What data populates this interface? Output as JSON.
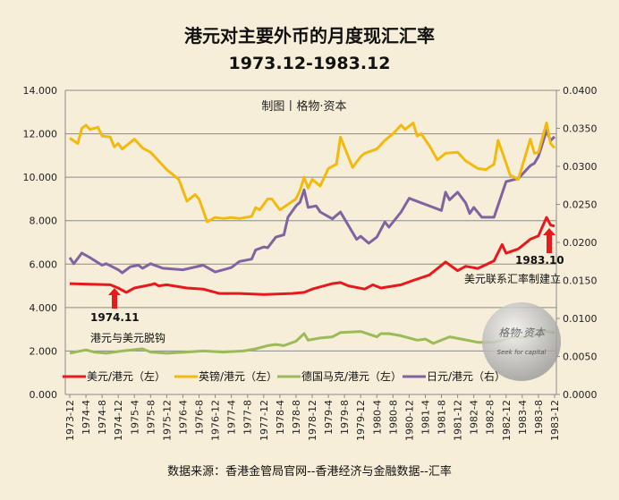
{
  "chart_data": {
    "type": "line",
    "title": "港元对主要外币的月度现汇汇率",
    "subtitle": "1973.12-1983.12",
    "credit": "制图丨格物·资本",
    "source": "数据来源：香港金管局官网--香港经济与金融数据--汇率",
    "x_tick_labels": [
      "1973-12",
      "1974-4",
      "1974-8",
      "1974-12",
      "1975-4",
      "1975-8",
      "1975-12",
      "1976-4",
      "1976-8",
      "1976-12",
      "1977-4",
      "1977-8",
      "1977-12",
      "1978-4",
      "1978-8",
      "1978-12",
      "1979-4",
      "1979-8",
      "1979-12",
      "1980-4",
      "1980-8",
      "1980-12",
      "1981-4",
      "1981-8",
      "1981-12",
      "1982-4",
      "1982-8",
      "1982-12",
      "1983-4",
      "1983-8",
      "1983-12"
    ],
    "y_left": {
      "range": [
        0,
        14
      ],
      "ticks": [
        "0.000",
        "2.000",
        "4.000",
        "6.000",
        "8.000",
        "10.000",
        "12.000",
        "14.000"
      ]
    },
    "y_right": {
      "range": [
        0,
        0.04
      ],
      "ticks": [
        "0.0000",
        "0.0050",
        "0.0100",
        "0.0150",
        "0.0200",
        "0.0250",
        "0.0300",
        "0.0350",
        "0.0400"
      ]
    },
    "grid": true,
    "legend_position": "bottom",
    "series": [
      {
        "name": "美元/港元（左）",
        "axis": "left",
        "color": "#e8191c",
        "points": [
          [
            "1973-12",
            5.1
          ],
          [
            "1974-10",
            5.05
          ],
          [
            "1974-12",
            4.9
          ],
          [
            "1975-2",
            4.7
          ],
          [
            "1975-4",
            4.9
          ],
          [
            "1975-8",
            5.05
          ],
          [
            "1975-9",
            5.1
          ],
          [
            "1975-10",
            5.0
          ],
          [
            "1975-12",
            5.05
          ],
          [
            "1976-5",
            4.9
          ],
          [
            "1976-9",
            4.85
          ],
          [
            "1977-1",
            4.65
          ],
          [
            "1977-6",
            4.65
          ],
          [
            "1977-12",
            4.6
          ],
          [
            "1978-7",
            4.65
          ],
          [
            "1978-10",
            4.7
          ],
          [
            "1978-12",
            4.85
          ],
          [
            "1979-5",
            5.1
          ],
          [
            "1979-7",
            5.15
          ],
          [
            "1979-9",
            5.0
          ],
          [
            "1980-1",
            4.85
          ],
          [
            "1980-3",
            5.05
          ],
          [
            "1980-5",
            4.9
          ],
          [
            "1980-10",
            5.05
          ],
          [
            "1981-1",
            5.25
          ],
          [
            "1981-5",
            5.5
          ],
          [
            "1981-9",
            6.1
          ],
          [
            "1981-12",
            5.7
          ],
          [
            "1982-2",
            5.9
          ],
          [
            "1982-5",
            5.8
          ],
          [
            "1982-9",
            6.15
          ],
          [
            "1982-11",
            6.9
          ],
          [
            "1982-12",
            6.5
          ],
          [
            "1983-3",
            6.7
          ],
          [
            "1983-6",
            7.15
          ],
          [
            "1983-8",
            7.3
          ],
          [
            "1983-10",
            8.15
          ],
          [
            "1983-11",
            7.8
          ],
          [
            "1983-12",
            7.75
          ]
        ]
      },
      {
        "name": "英镑/港元（左）",
        "axis": "left",
        "color": "#f2b90f",
        "points": [
          [
            "1973-12",
            11.8
          ],
          [
            "1974-2",
            11.55
          ],
          [
            "1974-3",
            12.25
          ],
          [
            "1974-4",
            12.4
          ],
          [
            "1974-5",
            12.2
          ],
          [
            "1974-7",
            12.3
          ],
          [
            "1974-8",
            11.9
          ],
          [
            "1974-10",
            11.85
          ],
          [
            "1974-11",
            11.4
          ],
          [
            "1974-12",
            11.55
          ],
          [
            "1975-1",
            11.3
          ],
          [
            "1975-4",
            11.75
          ],
          [
            "1975-6",
            11.35
          ],
          [
            "1975-8",
            11.15
          ],
          [
            "1975-12",
            10.35
          ],
          [
            "1976-1",
            10.2
          ],
          [
            "1976-3",
            9.9
          ],
          [
            "1976-5",
            8.9
          ],
          [
            "1976-7",
            9.2
          ],
          [
            "1976-8",
            9.0
          ],
          [
            "1976-10",
            7.95
          ],
          [
            "1976-12",
            8.15
          ],
          [
            "1977-2",
            8.1
          ],
          [
            "1977-4",
            8.15
          ],
          [
            "1977-6",
            8.1
          ],
          [
            "1977-9",
            8.2
          ],
          [
            "1977-10",
            8.6
          ],
          [
            "1977-11",
            8.5
          ],
          [
            "1978-1",
            9.0
          ],
          [
            "1978-2",
            9.0
          ],
          [
            "1978-4",
            8.5
          ],
          [
            "1978-8",
            9.0
          ],
          [
            "1978-9",
            9.4
          ],
          [
            "1978-10",
            10.0
          ],
          [
            "1978-11",
            9.5
          ],
          [
            "1978-12",
            9.9
          ],
          [
            "1979-2",
            9.6
          ],
          [
            "1979-4",
            10.4
          ],
          [
            "1979-6",
            10.6
          ],
          [
            "1979-7",
            11.85
          ],
          [
            "1979-10",
            10.45
          ],
          [
            "1979-12",
            10.95
          ],
          [
            "1980-1",
            11.1
          ],
          [
            "1980-4",
            11.3
          ],
          [
            "1980-6",
            11.7
          ],
          [
            "1980-8",
            12.0
          ],
          [
            "1980-10",
            12.4
          ],
          [
            "1980-11",
            12.2
          ],
          [
            "1981-1",
            12.5
          ],
          [
            "1981-2",
            11.9
          ],
          [
            "1981-3",
            12.0
          ],
          [
            "1981-5",
            11.45
          ],
          [
            "1981-7",
            10.8
          ],
          [
            "1981-9",
            11.1
          ],
          [
            "1981-12",
            11.15
          ],
          [
            "1982-2",
            10.75
          ],
          [
            "1982-5",
            10.4
          ],
          [
            "1982-7",
            10.35
          ],
          [
            "1982-9",
            10.6
          ],
          [
            "1982-10",
            11.7
          ],
          [
            "1982-12",
            10.65
          ],
          [
            "1983-1",
            10.1
          ],
          [
            "1983-3",
            9.9
          ],
          [
            "1983-6",
            11.75
          ],
          [
            "1983-7",
            11.1
          ],
          [
            "1983-8",
            11.15
          ],
          [
            "1983-10",
            12.5
          ],
          [
            "1983-11",
            11.55
          ],
          [
            "1983-12",
            11.35
          ]
        ]
      },
      {
        "name": "德国马克/港元（左）",
        "axis": "left",
        "color": "#9bbb59",
        "points": [
          [
            "1973-12",
            1.9
          ],
          [
            "1974-4",
            2.05
          ],
          [
            "1974-6",
            1.95
          ],
          [
            "1974-9",
            1.9
          ],
          [
            "1975-1",
            2.0
          ],
          [
            "1975-6",
            2.1
          ],
          [
            "1975-8",
            1.95
          ],
          [
            "1975-12",
            1.9
          ],
          [
            "1976-5",
            1.95
          ],
          [
            "1976-9",
            2.0
          ],
          [
            "1977-2",
            1.95
          ],
          [
            "1977-7",
            2.0
          ],
          [
            "1977-10",
            2.1
          ],
          [
            "1978-1",
            2.25
          ],
          [
            "1978-3",
            2.3
          ],
          [
            "1978-5",
            2.25
          ],
          [
            "1978-8",
            2.45
          ],
          [
            "1978-10",
            2.8
          ],
          [
            "1978-11",
            2.5
          ],
          [
            "1979-2",
            2.6
          ],
          [
            "1979-5",
            2.65
          ],
          [
            "1979-7",
            2.85
          ],
          [
            "1979-12",
            2.9
          ],
          [
            "1980-4",
            2.65
          ],
          [
            "1980-5",
            2.8
          ],
          [
            "1980-7",
            2.8
          ],
          [
            "1980-10",
            2.7
          ],
          [
            "1981-2",
            2.5
          ],
          [
            "1981-4",
            2.55
          ],
          [
            "1981-6",
            2.35
          ],
          [
            "1981-10",
            2.65
          ],
          [
            "1982-1",
            2.55
          ],
          [
            "1982-5",
            2.4
          ],
          [
            "1982-9",
            2.4
          ],
          [
            "1983-1",
            2.6
          ],
          [
            "1983-6",
            2.65
          ],
          [
            "1983-10",
            2.9
          ],
          [
            "1983-12",
            2.85
          ]
        ]
      },
      {
        "name": "日元/港元（右）",
        "axis": "right",
        "color": "#8064a2",
        "points": [
          [
            "1973-12",
            0.018
          ],
          [
            "1974-1",
            0.0172
          ],
          [
            "1974-3",
            0.0186
          ],
          [
            "1974-5",
            0.018
          ],
          [
            "1974-8",
            0.017
          ],
          [
            "1974-9",
            0.0172
          ],
          [
            "1974-12",
            0.0164
          ],
          [
            "1975-1",
            0.016
          ],
          [
            "1975-3",
            0.0168
          ],
          [
            "1975-5",
            0.017
          ],
          [
            "1975-6",
            0.0166
          ],
          [
            "1975-8",
            0.0172
          ],
          [
            "1975-11",
            0.0166
          ],
          [
            "1976-4",
            0.0164
          ],
          [
            "1976-9",
            0.017
          ],
          [
            "1976-12",
            0.0161
          ],
          [
            "1977-4",
            0.0167
          ],
          [
            "1977-6",
            0.0175
          ],
          [
            "1977-9",
            0.0178
          ],
          [
            "1977-10",
            0.019
          ],
          [
            "1977-12",
            0.0194
          ],
          [
            "1978-1",
            0.0193
          ],
          [
            "1978-3",
            0.0207
          ],
          [
            "1978-5",
            0.021
          ],
          [
            "1978-6",
            0.0233
          ],
          [
            "1978-8",
            0.0248
          ],
          [
            "1978-9",
            0.0253
          ],
          [
            "1978-10",
            0.0269
          ],
          [
            "1978-11",
            0.0246
          ],
          [
            "1979-1",
            0.0248
          ],
          [
            "1979-2",
            0.024
          ],
          [
            "1979-5",
            0.0231
          ],
          [
            "1979-7",
            0.024
          ],
          [
            "1979-11",
            0.0204
          ],
          [
            "1979-12",
            0.0208
          ],
          [
            "1980-2",
            0.0199
          ],
          [
            "1980-4",
            0.0207
          ],
          [
            "1980-6",
            0.0227
          ],
          [
            "1980-7",
            0.022
          ],
          [
            "1980-10",
            0.024
          ],
          [
            "1980-12",
            0.0258
          ],
          [
            "1981-3",
            0.0252
          ],
          [
            "1981-6",
            0.0246
          ],
          [
            "1981-8",
            0.0242
          ],
          [
            "1981-9",
            0.0266
          ],
          [
            "1981-10",
            0.0256
          ],
          [
            "1981-12",
            0.0266
          ],
          [
            "1982-2",
            0.0252
          ],
          [
            "1982-3",
            0.0238
          ],
          [
            "1982-4",
            0.0246
          ],
          [
            "1982-6",
            0.0233
          ],
          [
            "1982-9",
            0.0233
          ],
          [
            "1982-12",
            0.028
          ],
          [
            "1983-3",
            0.0284
          ],
          [
            "1983-6",
            0.0301
          ],
          [
            "1983-7",
            0.0304
          ],
          [
            "1983-8",
            0.0313
          ],
          [
            "1983-10",
            0.0347
          ],
          [
            "1983-11",
            0.0334
          ],
          [
            "1983-12",
            0.0339
          ]
        ]
      }
    ],
    "annotations": [
      {
        "date": "1974.11",
        "text": "港元与美元脱钩"
      },
      {
        "date": "1983.10",
        "text": "美元联系汇率制建立"
      }
    ],
    "watermark": {
      "text": "格物·资本",
      "subtext": "Seek for capital"
    }
  }
}
